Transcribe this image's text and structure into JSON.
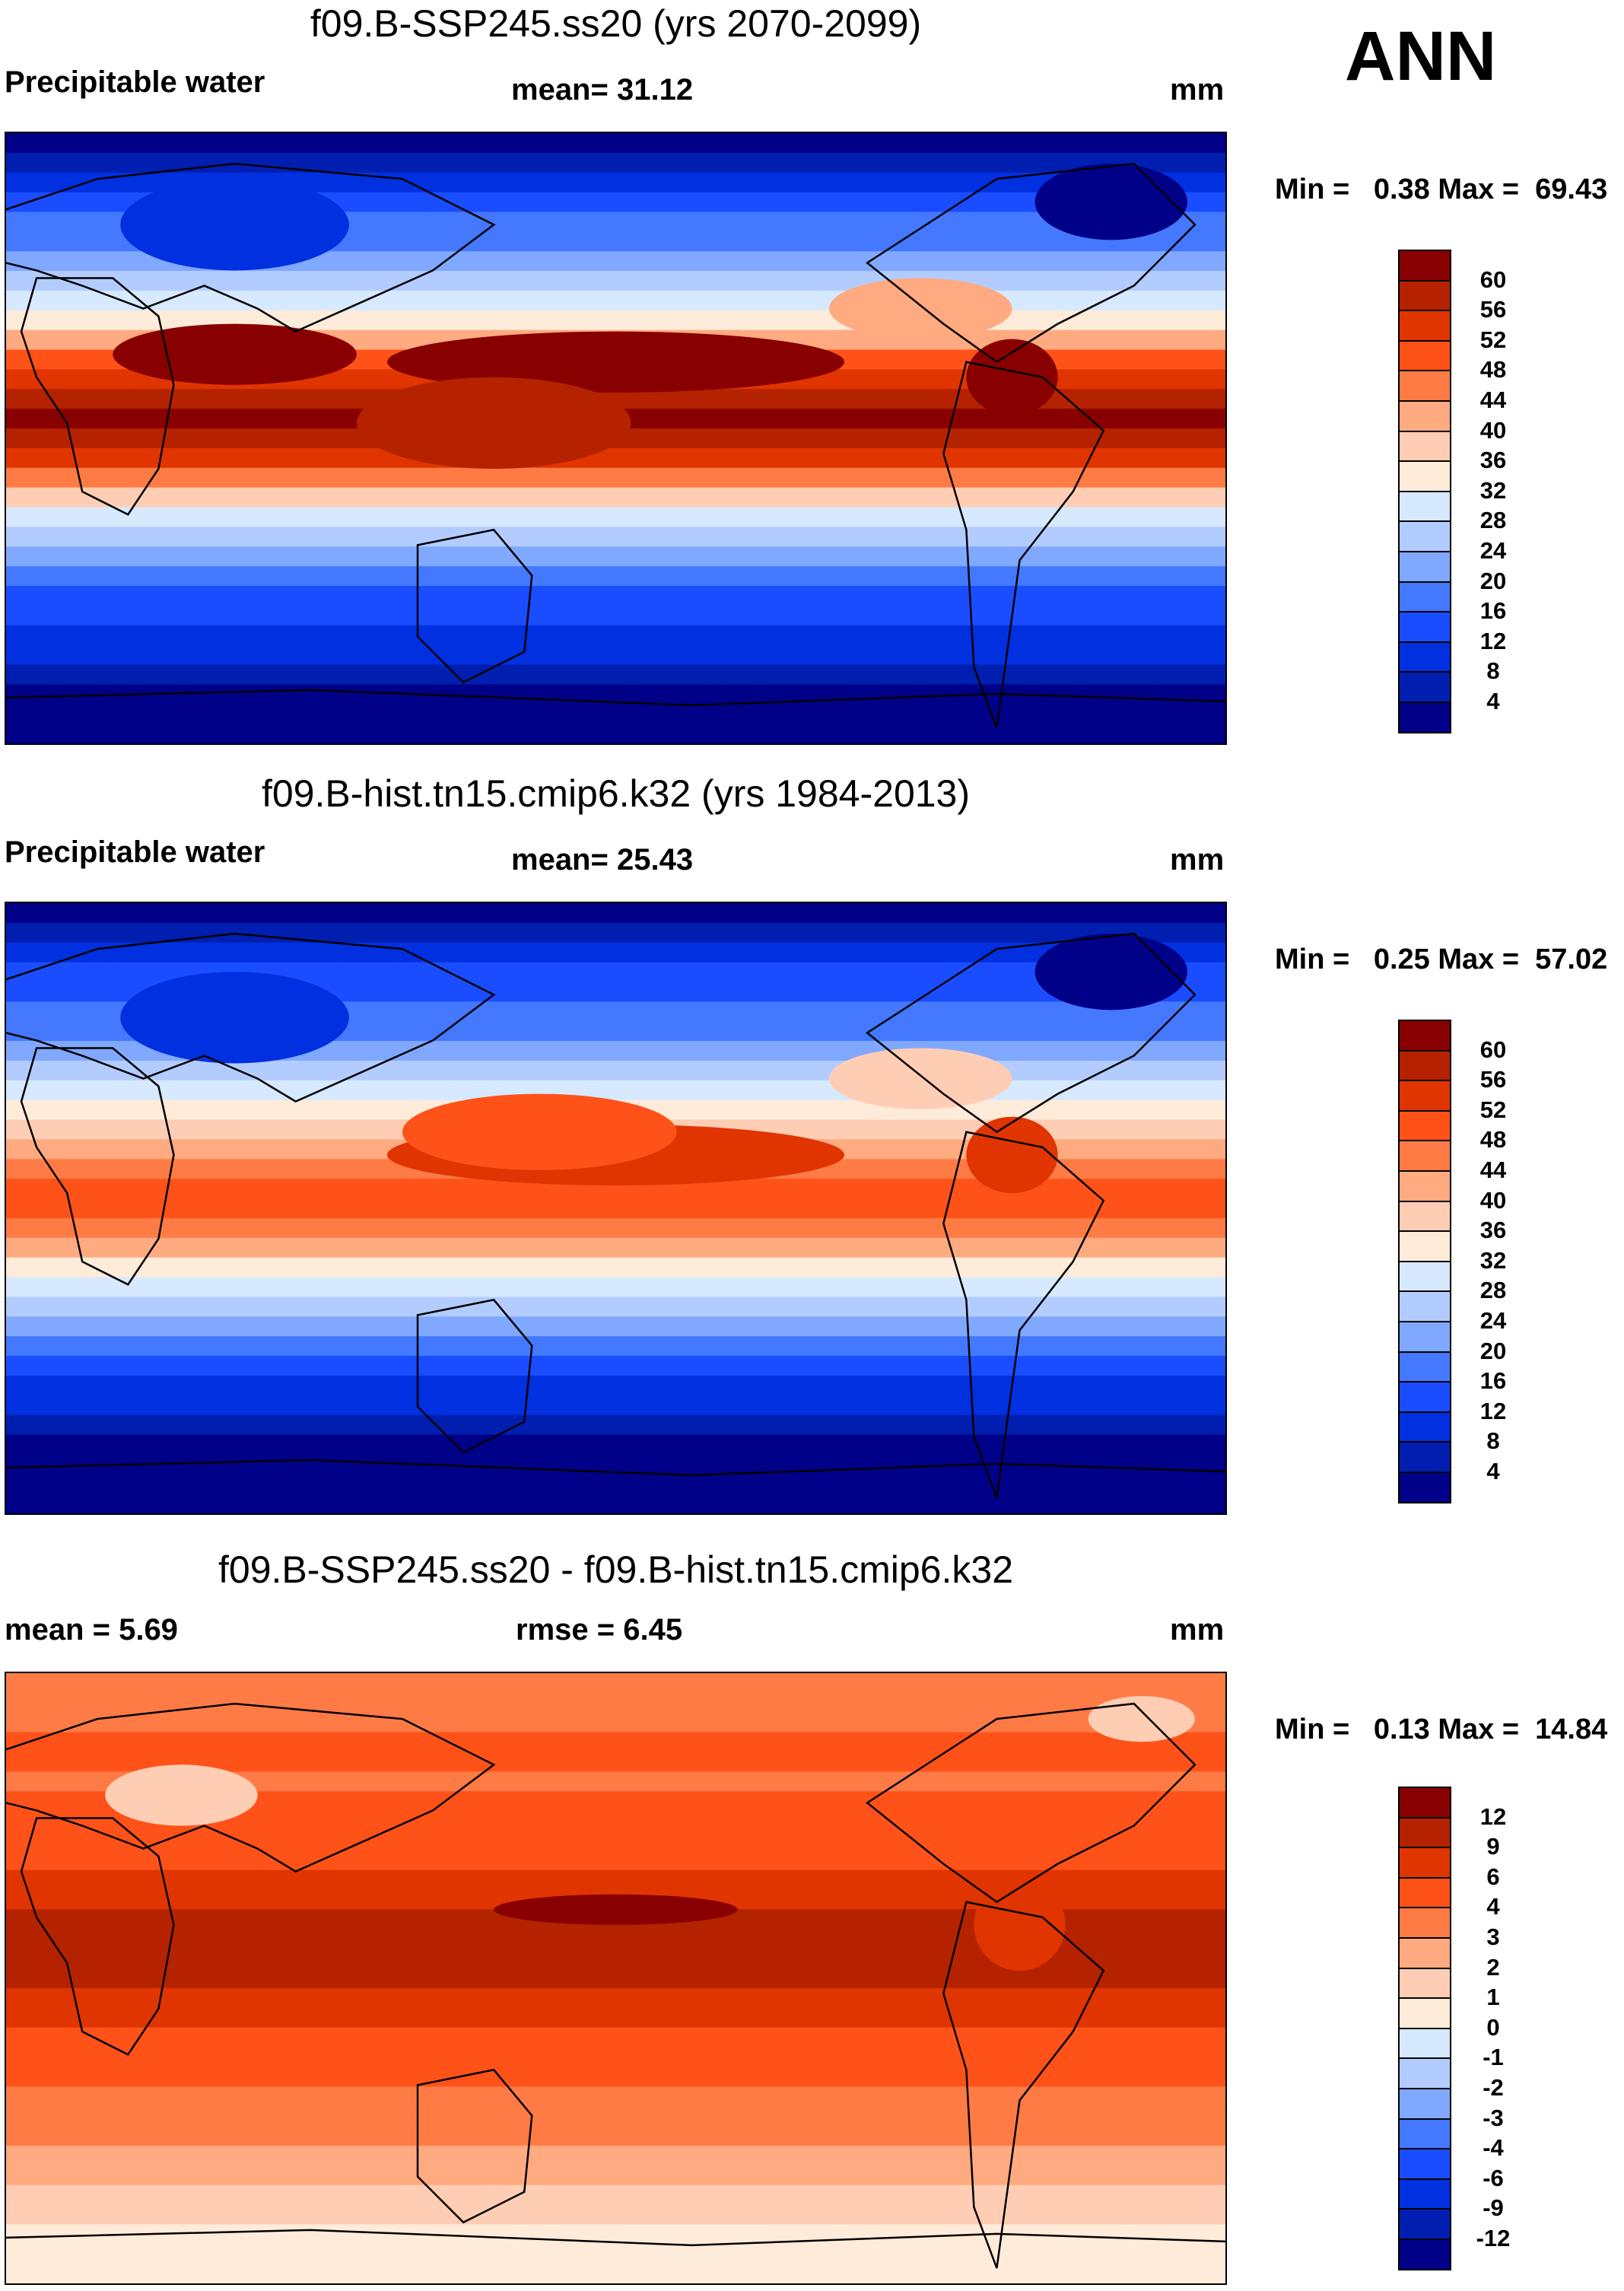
{
  "season": "ANN",
  "units": "mm",
  "panels": [
    {
      "title": "f09.B-SSP245.ss20 (yrs 2070-2099)",
      "variable": "Precipitable water",
      "stat1": "mean=  31.12",
      "stat2": "",
      "minmax": "Min =   0.38 Max =  69.43"
    },
    {
      "title": "f09.B-hist.tn15.cmip6.k32 (yrs 1984-2013)",
      "variable": "Precipitable water",
      "stat1": "mean=  25.43",
      "stat2": "",
      "minmax": "Min =   0.25 Max =  57.02"
    },
    {
      "title": "f09.B-SSP245.ss20 - f09.B-hist.tn15.cmip6.k32",
      "variable": "",
      "stat1": "mean =    5.69",
      "stat2": "rmse =    6.45",
      "minmax": "Min =   0.13 Max =  14.84"
    }
  ],
  "chart_data": [
    {
      "type": "heatmap",
      "title": "f09.B-SSP245.ss20 (yrs 2070-2099)",
      "field": "Precipitable water",
      "units": "mm",
      "mean": 31.12,
      "min": 0.38,
      "max": 69.43,
      "levels": [
        "60",
        "56",
        "52",
        "48",
        "44",
        "40",
        "36",
        "32",
        "28",
        "24",
        "20",
        "16",
        "12",
        "8",
        "4"
      ]
    },
    {
      "type": "heatmap",
      "title": "f09.B-hist.tn15.cmip6.k32 (yrs 1984-2013)",
      "field": "Precipitable water",
      "units": "mm",
      "mean": 25.43,
      "min": 0.25,
      "max": 57.02,
      "levels": [
        "60",
        "56",
        "52",
        "48",
        "44",
        "40",
        "36",
        "32",
        "28",
        "24",
        "20",
        "16",
        "12",
        "8",
        "4"
      ]
    },
    {
      "type": "heatmap",
      "title": "f09.B-SSP245.ss20 - f09.B-hist.tn15.cmip6.k32",
      "units": "mm",
      "mean": 5.69,
      "rmse": 6.45,
      "min": 0.13,
      "max": 14.84,
      "levels": [
        "12",
        "9",
        "6",
        "4",
        "3",
        "2",
        "1",
        "0",
        "-1",
        "-2",
        "-3",
        "-4",
        "-6",
        "-9",
        "-12"
      ]
    }
  ],
  "palette": [
    "#880000",
    "#b52200",
    "#e03500",
    "#ff5219",
    "#ff7b45",
    "#ffaa80",
    "#ffcdb4",
    "#ffebd9",
    "#d6e9ff",
    "#b3ccff",
    "#80a8ff",
    "#4378ff",
    "#1a4dff",
    "#0030e0",
    "#001fb0",
    "#000088"
  ]
}
